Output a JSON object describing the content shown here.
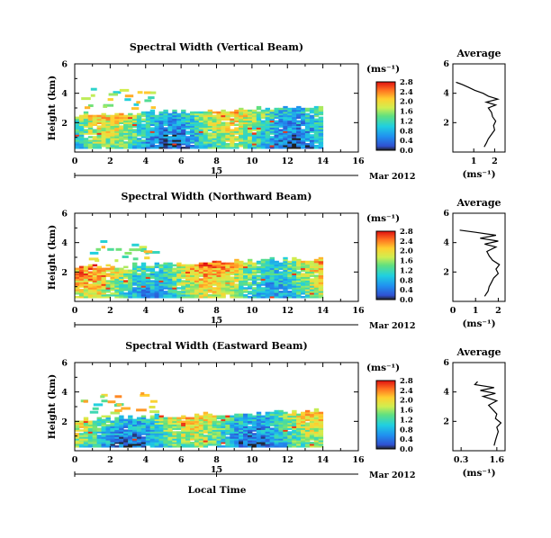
{
  "chart_data": [
    {
      "type": "heatmap",
      "title": "Spectral Width (Vertical Beam)",
      "ylabel": "Height (km)",
      "xlabel": "",
      "xlim": [
        0,
        16
      ],
      "ylim": [
        0,
        6
      ],
      "xticks": [
        "0",
        "2",
        "4",
        "6",
        "8",
        "10",
        "12",
        "14",
        "16"
      ],
      "yticks": [
        "2",
        "4",
        "6"
      ],
      "date_marker": "15",
      "date_label": "Mar 2012",
      "colorbar": {
        "unit": "(ms⁻¹)",
        "ticks": [
          "0.0",
          "0.4",
          "0.8",
          "1.2",
          "1.6",
          "2.0",
          "2.4",
          "2.8"
        ]
      },
      "data_extent": {
        "time": [
          0,
          14
        ],
        "height_top": 3.2
      },
      "average_profile": {
        "title": "Average",
        "xlabel": "(ms⁻¹)",
        "xticks": [
          "1",
          "2"
        ],
        "xlim": [
          0,
          2.5
        ],
        "ylim": [
          0,
          6
        ],
        "yticks": [
          "2",
          "4",
          "6"
        ],
        "height": [
          0.35,
          0.6,
          0.9,
          1.2,
          1.5,
          1.8,
          2.1,
          2.4,
          2.7,
          3.0,
          3.2,
          3.4,
          3.6,
          3.8,
          4.0,
          4.2,
          4.4,
          4.6,
          4.75
        ],
        "width": [
          1.5,
          1.6,
          1.7,
          1.85,
          2.0,
          1.95,
          2.05,
          1.9,
          1.85,
          1.7,
          2.05,
          1.6,
          2.15,
          1.7,
          1.45,
          1.05,
          0.75,
          0.45,
          0.15
        ]
      }
    },
    {
      "type": "heatmap",
      "title": "Spectral Width (Northward Beam)",
      "ylabel": "Height (km)",
      "xlabel": "",
      "xlim": [
        0,
        16
      ],
      "ylim": [
        0,
        6
      ],
      "xticks": [
        "0",
        "2",
        "4",
        "6",
        "8",
        "10",
        "12",
        "14",
        "16"
      ],
      "yticks": [
        "2",
        "4",
        "6"
      ],
      "date_marker": "15",
      "date_label": "Mar 2012",
      "colorbar": {
        "unit": "(ms⁻¹)",
        "ticks": [
          "0.0",
          "0.4",
          "0.8",
          "1.2",
          "1.6",
          "2.0",
          "2.4",
          "2.8"
        ]
      },
      "data_extent": {
        "time": [
          0,
          14
        ],
        "height_top": 3.0
      },
      "average_profile": {
        "title": "Average",
        "xlabel": "(ms⁻¹)",
        "xticks": [
          "0",
          "1",
          "2"
        ],
        "xlim": [
          0,
          2.3
        ],
        "ylim": [
          0,
          6
        ],
        "yticks": [
          "2",
          "4",
          "6"
        ],
        "height": [
          0.35,
          0.7,
          1.0,
          1.3,
          1.6,
          1.9,
          2.2,
          2.5,
          2.8,
          3.1,
          3.4,
          3.7,
          3.9,
          4.1,
          4.3,
          4.5,
          4.7,
          4.85
        ],
        "width": [
          1.4,
          1.55,
          1.6,
          1.7,
          1.8,
          2.0,
          1.9,
          2.05,
          1.75,
          1.6,
          1.5,
          1.9,
          1.4,
          2.0,
          1.2,
          1.9,
          1.0,
          0.3
        ]
      }
    },
    {
      "type": "heatmap",
      "title": "Spectral Width (Eastward Beam)",
      "ylabel": "Height (km)",
      "xlabel": "Local Time",
      "xlim": [
        0,
        16
      ],
      "ylim": [
        0,
        6
      ],
      "xticks": [
        "0",
        "2",
        "4",
        "6",
        "8",
        "10",
        "12",
        "14",
        "16"
      ],
      "yticks": [
        "2",
        "4",
        "6"
      ],
      "date_marker": "15",
      "date_label": "Mar 2012",
      "colorbar": {
        "unit": "(ms⁻¹)",
        "ticks": [
          "0.0",
          "0.4",
          "0.8",
          "1.2",
          "1.6",
          "2.0",
          "2.4",
          "2.8"
        ]
      },
      "data_extent": {
        "time": [
          0,
          14
        ],
        "height_top": 2.8
      },
      "average_profile": {
        "title": "Average",
        "xlabel": "(ms⁻¹)",
        "xticks": [
          "0.3",
          "1.6"
        ],
        "xlim": [
          0,
          1.9
        ],
        "ylim": [
          0,
          6
        ],
        "yticks": [
          "2",
          "4",
          "6"
        ],
        "height": [
          0.35,
          0.7,
          1.0,
          1.3,
          1.6,
          1.9,
          2.2,
          2.5,
          2.8,
          3.1,
          3.4,
          3.7,
          3.9,
          4.1,
          4.3,
          4.5,
          4.7
        ],
        "width": [
          1.5,
          1.55,
          1.6,
          1.65,
          1.6,
          1.75,
          1.55,
          1.6,
          1.45,
          1.3,
          1.6,
          1.1,
          1.55,
          1.0,
          1.5,
          0.8,
          0.9
        ]
      }
    }
  ]
}
